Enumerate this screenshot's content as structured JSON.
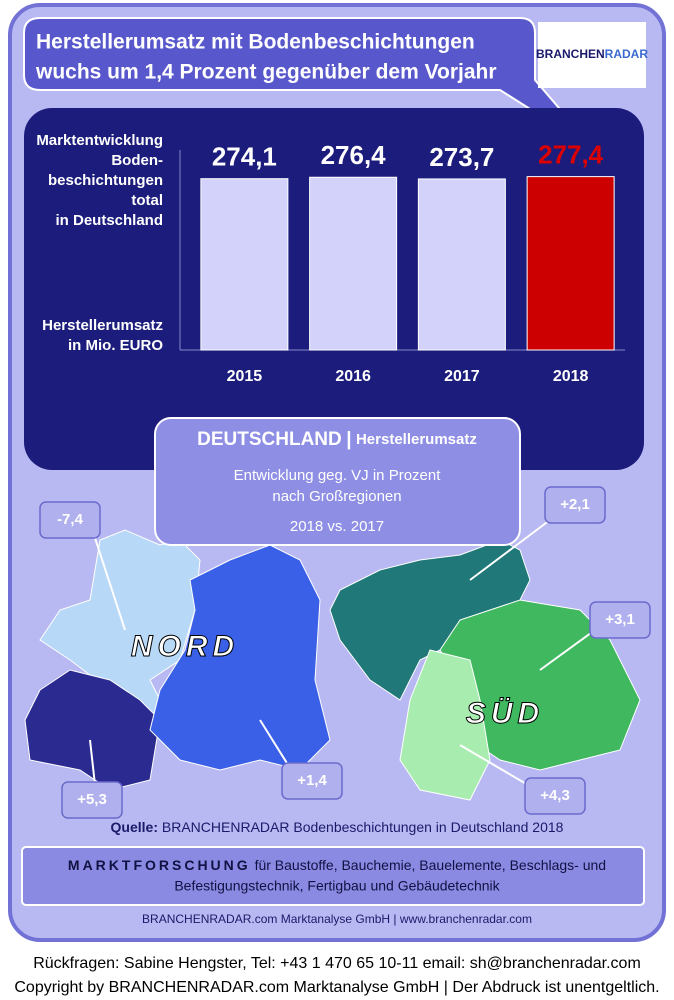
{
  "header": {
    "title_lines": [
      "Herstellerumsatz mit Bodenbeschichtungen",
      "wuchs um 1,4 Prozent gegenüber dem Vorjahr"
    ],
    "logo_left": "BRANCHEN",
    "logo_right": "RADAR"
  },
  "chart_data": {
    "type": "bar",
    "label_lines": [
      "Marktentwicklung",
      "Boden-",
      "beschichtungen",
      "total",
      "in Deutschland"
    ],
    "unit_lines": [
      "Herstellerumsatz",
      "in Mio. EURO"
    ],
    "categories": [
      "2015",
      "2016",
      "2017",
      "2018"
    ],
    "values": [
      274.1,
      276.4,
      273.7,
      277.4
    ],
    "value_labels": [
      "274,1",
      "276,4",
      "273,7",
      "277,4"
    ],
    "colors": [
      "#d2d2fa",
      "#d2d2fa",
      "#d2d2fa",
      "#cc0000"
    ],
    "label_colors": [
      "#ffffff",
      "#ffffff",
      "#ffffff",
      "#dd0000"
    ],
    "ylim": [
      0,
      320
    ]
  },
  "info_box": {
    "title": "DEUTSCHLAND",
    "separator": "|",
    "subtitle": "Herstellerumsatz",
    "lines": [
      "Entwicklung  geg. VJ in Prozent",
      "nach Großregionen",
      "2018 vs. 2017"
    ]
  },
  "map": {
    "nord": "NORD",
    "sued": "SÜD",
    "regions": [
      "-7,4",
      "+2,1",
      "+3,1",
      "+5,3",
      "+1,4",
      "+4,3"
    ]
  },
  "source": {
    "prefix": "Quelle:",
    "text": "BRANCHENRADAR Bodenbeschichtungen in Deutschland 2018"
  },
  "banner": {
    "lead": "MARKTFORSCHUNG",
    "lines": [
      "für Baustoffe, Bauchemie, Bauelemente, Beschlags- und",
      "Befestigungstechnik, Fertigbau und Gebäudetechnik"
    ]
  },
  "company": "BRANCHENRADAR.com Marktanalyse GmbH | www.branchenradar.com",
  "footer": [
    "Rückfragen: Sabine Hengster, Tel: +43 1 470 65 10-11 email: sh@branchenradar.com",
    "Copyright by BRANCHENRADAR.com  Marktanalyse GmbH | Der Abdruck ist unentgeltlich."
  ]
}
